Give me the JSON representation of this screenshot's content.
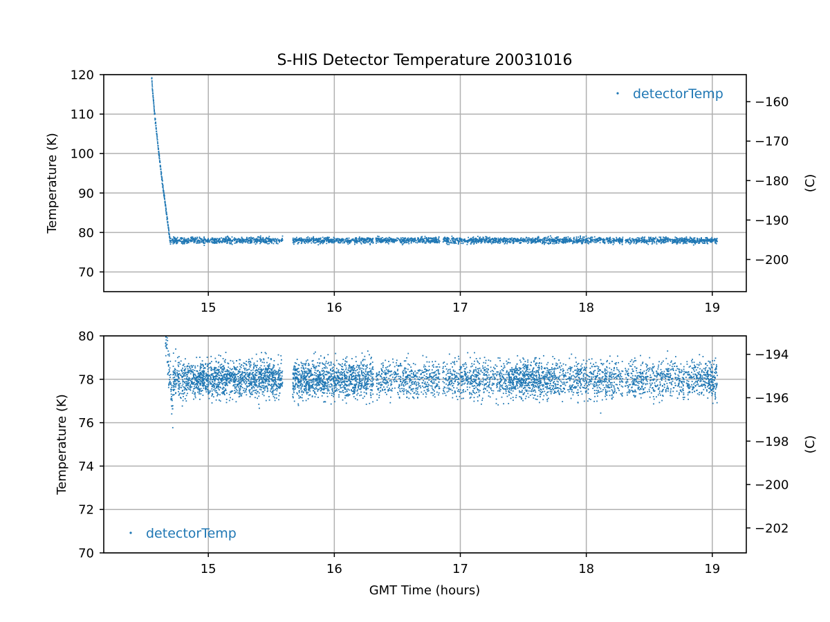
{
  "chart_data": [
    {
      "type": "scatter",
      "title": "S-HIS Detector Temperature 20031016",
      "xlabel": "",
      "ylabel": "Temperature (K)",
      "ylabel_right": "(C)",
      "xlim": [
        14.17,
        19.27
      ],
      "ylim": [
        65,
        120
      ],
      "xticks": [
        15,
        16,
        17,
        18,
        19
      ],
      "yticks": [
        70,
        80,
        90,
        100,
        110,
        120
      ],
      "yticks_right": [
        -200,
        -190,
        -180,
        -170,
        -160
      ],
      "grid": true,
      "legend": {
        "label": "detectorTemp",
        "placement": "upper right"
      },
      "series": [
        {
          "name": "detectorTemp",
          "color": "#1f77b4",
          "cooldown": {
            "x_start": 14.55,
            "y_start": 120,
            "x_end": 14.7,
            "y_end": 77.3
          },
          "plateau_mean": 78.0,
          "plateau_spread": 1.2,
          "segments": [
            [
              14.7,
              15.59
            ],
            [
              15.67,
              16.31
            ],
            [
              16.33,
              16.84
            ],
            [
              16.86,
              18.29
            ],
            [
              18.31,
              19.04
            ]
          ]
        }
      ]
    },
    {
      "type": "scatter",
      "title": "",
      "xlabel": "GMT Time (hours)",
      "ylabel": "Temperature (K)",
      "ylabel_right": "(C)",
      "xlim": [
        14.17,
        19.27
      ],
      "ylim": [
        70,
        80
      ],
      "xticks": [
        15,
        16,
        17,
        18,
        19
      ],
      "yticks": [
        70,
        72,
        74,
        76,
        78,
        80
      ],
      "yticks_right": [
        -202,
        -200,
        -198,
        -196,
        -194
      ],
      "grid": true,
      "legend": {
        "label": "detectorTemp",
        "placement": "lower left"
      },
      "series": [
        {
          "name": "detectorTemp",
          "color": "#1f77b4",
          "plateau_mean": 78.0,
          "dense_segments": [
            [
              14.72,
              15.59
            ],
            [
              15.67,
              16.31
            ],
            [
              17.38,
              17.75
            ],
            [
              18.96,
              19.04
            ]
          ],
          "sparse_segments": [
            [
              16.33,
              17.38
            ],
            [
              17.75,
              18.96
            ]
          ],
          "segments": [
            [
              14.72,
              15.59
            ],
            [
              15.67,
              16.31
            ],
            [
              16.33,
              16.84
            ],
            [
              16.86,
              18.29
            ],
            [
              18.31,
              19.04
            ]
          ]
        }
      ]
    }
  ]
}
